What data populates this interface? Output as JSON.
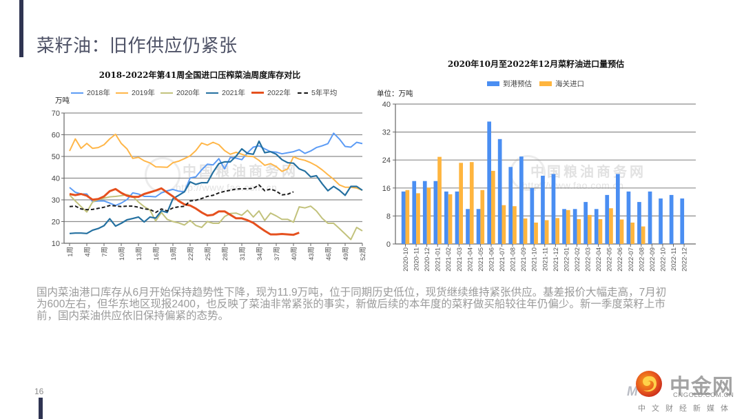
{
  "slide": {
    "title": "菜籽油：旧作供应仍紧张",
    "accent_color": "#2F3452",
    "body_lines": [
      "国内菜油港口库存从6月开始保持趋势性下降，现为11.9万吨，位于同期历史低位，现货继续维持紧张供应。基差报价大幅走高，7月初",
      "为600左右，但华东地区现报2400，也反映了菜油非常紧张的事实，新做后续的本年度的菜籽做买船较往年仍偏少。新一季度菜籽上市",
      "前，国内菜油供应依旧保持偏紧的态势。"
    ],
    "page_number": "16"
  },
  "logo": {
    "name": "中金网",
    "domain": "CNGOLD.COM.CN",
    "tagline": "中文财经新媒体",
    "overlay_fragment": "M e"
  },
  "chart_data": [
    {
      "type": "line",
      "title": "2018-2022年第41周全国进口压榨菜油周度库存对比",
      "xlabel": "",
      "ylabel": "万吨",
      "ylim": [
        10,
        70
      ],
      "yticks": [
        10,
        20,
        30,
        40,
        50,
        60,
        70
      ],
      "x_ticks": [
        1,
        4,
        7,
        10,
        13,
        16,
        19,
        22,
        25,
        28,
        31,
        34,
        37,
        40,
        43,
        46,
        49,
        52
      ],
      "x_tick_labels": [
        "1周",
        "4周",
        "7周",
        "10周",
        "13周",
        "16周",
        "19周",
        "22周",
        "25周",
        "28周",
        "31周",
        "34周",
        "37周",
        "40周",
        "43周",
        "46周",
        "49周",
        "52周"
      ],
      "x_unit": "week",
      "grid": true,
      "legend_position": "top",
      "watermark": {
        "cn": "中国粮油商务网",
        "url": "http://www.fao.com.cn"
      },
      "series": [
        {
          "name": "2018年",
          "color": "#5B9BF5",
          "line_style": "solid",
          "values": [
            35.7,
            33.5,
            32.7,
            32.7,
            29.2,
            29.5,
            29.5,
            28.5,
            27.4,
            28.5,
            30.1,
            33.2,
            32.7,
            31.6,
            31.6,
            31.4,
            33.2,
            34.2,
            34.8,
            34.0,
            33.7,
            40.1,
            40.6,
            43.8,
            46.4,
            46.1,
            49.0,
            44.3,
            49.5,
            49.2,
            48.5,
            51.7,
            54.3,
            54.9,
            53.5,
            52.2,
            52.0,
            51.2,
            51.7,
            52.2,
            53.1,
            51.4,
            52.5,
            54.1,
            54.9,
            55.9,
            60.7,
            58.0,
            54.6,
            54.3,
            56.5,
            55.9
          ]
        },
        {
          "name": "2019年",
          "color": "#FFB648",
          "line_style": "solid",
          "values": [
            52.5,
            58.1,
            53.7,
            56.0,
            53.7,
            54.1,
            55.4,
            58.1,
            60.2,
            56.0,
            53.5,
            49.1,
            49.6,
            48.0,
            47.0,
            45.2,
            45.1,
            45.0,
            47.1,
            47.8,
            49.0,
            50.3,
            52.7,
            56.2,
            55.2,
            56.5,
            55.4,
            52.7,
            51.0,
            51.9,
            51.0,
            50.1,
            49.9,
            48.2,
            45.9,
            46.7,
            45.3,
            43.1,
            44.3,
            49.8,
            48.8,
            48.2,
            47.1,
            45.7,
            43.8,
            41.6,
            39.5,
            36.9,
            35.8,
            35.8,
            35.5,
            34.4
          ]
        },
        {
          "name": "2020年",
          "color": "#C2C27C",
          "line_style": "solid",
          "values": [
            32.2,
            29.5,
            26.9,
            24.4,
            29.0,
            30.1,
            30.8,
            31.4,
            31.6,
            31.9,
            32.4,
            31.6,
            29.0,
            26.9,
            25.3,
            20.3,
            24.2,
            21.0,
            20.0,
            19.4,
            18.4,
            20.5,
            18.2,
            17.3,
            20.0,
            19.2,
            19.2,
            22.3,
            23.7,
            23.9,
            22.9,
            25.2,
            22.1,
            24.9,
            20.5,
            23.9,
            22.6,
            21.0,
            21.0,
            19.7,
            26.8,
            26.3,
            27.1,
            24.9,
            21.5,
            19.2,
            19.2,
            16.8,
            14.3,
            11.7,
            17.3,
            15.7
          ]
        },
        {
          "name": "2021年",
          "color": "#2470A0",
          "line_style": "solid",
          "values": [
            14.5,
            14.7,
            14.7,
            14.5,
            16.0,
            16.8,
            18.1,
            21.3,
            17.9,
            19.2,
            20.8,
            21.4,
            22.1,
            19.8,
            22.1,
            21.6,
            25.0,
            24.2,
            30.5,
            32.1,
            33.7,
            38.3,
            37.1,
            37.9,
            37.9,
            42.7,
            46.7,
            47.5,
            47.5,
            50.1,
            53.5,
            51.4,
            51.0,
            57.0,
            51.7,
            52.2,
            51.0,
            48.5,
            47.1,
            46.9,
            44.3,
            43.2,
            40.6,
            41.1,
            37.4,
            34.2,
            36.2,
            34.4,
            32.1,
            36.2,
            36.2,
            34.4
          ]
        },
        {
          "name": "2022年",
          "color": "#E5501E",
          "line_style": "solid",
          "values": [
            32.7,
            32.2,
            32.7,
            31.9,
            30.1,
            30.4,
            31.6,
            34.0,
            35.0,
            33.2,
            31.9,
            31.4,
            31.4,
            32.7,
            33.5,
            34.3,
            35.3,
            33.4,
            31.6,
            29.5,
            27.9,
            27.4,
            26.0,
            24.2,
            22.8,
            23.1,
            24.7,
            24.7,
            23.1,
            21.5,
            21.5,
            20.6,
            19.4,
            17.5,
            15.7,
            14.1,
            14.1,
            14.3,
            14.1,
            13.9,
            14.9
          ]
        },
        {
          "name": "5年平均",
          "color": "#1A1A1A",
          "line_style": "dashed",
          "values": [
            26.9,
            27.1,
            25.8,
            25.5,
            25.6,
            26.1,
            26.6,
            27.4,
            27.2,
            26.9,
            27.1,
            27.1,
            26.6,
            25.8,
            25.6,
            24.2,
            25.8,
            24.9,
            26.3,
            26.8,
            27.0,
            29.5,
            29.8,
            30.6,
            31.6,
            32.1,
            33.2,
            33.9,
            34.4,
            35.0,
            35.1,
            35.1,
            35.3,
            36.9,
            34.2,
            35.0,
            34.0,
            32.3,
            32.6,
            33.7
          ]
        }
      ]
    },
    {
      "type": "bar",
      "title": "2020年10月至2022年12月菜籽油进口量预估",
      "xlabel": "",
      "ylabel": "单位：万吨",
      "ylim": [
        0,
        40
      ],
      "yticks": [
        0,
        8,
        16,
        24,
        32,
        40
      ],
      "grid": true,
      "legend_position": "top",
      "watermark": {
        "cn": "中国粮油商务网",
        "url": "http://www.fao.com.cn"
      },
      "categories": [
        "2020-10",
        "2020-11",
        "2020-12",
        "2021-01",
        "2021-02",
        "2021-03",
        "2021-04",
        "2021-05",
        "2021-06",
        "2021-07",
        "2021-08",
        "2021-09",
        "2021-10",
        "2021-11",
        "2021-12",
        "2022-01",
        "2022-02",
        "2022-03",
        "2022-04",
        "2022-05",
        "2022-06",
        "2022-07",
        "2022-08",
        "2022-09",
        "2022-10",
        "2022-11",
        "2022-12"
      ],
      "series": [
        {
          "name": "到港预估",
          "color": "#4A8EF2",
          "values": [
            15,
            18,
            18,
            18,
            15,
            15,
            10,
            10,
            35,
            30,
            22,
            25,
            16,
            19.5,
            20,
            10,
            10,
            12,
            10,
            14,
            20,
            15,
            12,
            15,
            13,
            14,
            13
          ]
        },
        {
          "name": "海关进口",
          "color": "#FFB53E",
          "values": [
            15.4,
            14.5,
            16.1,
            24.9,
            14.2,
            23.2,
            23.4,
            15.4,
            20.9,
            11.1,
            10.8,
            7.3,
            6.1,
            6.8,
            7.4,
            9.7,
            7.1,
            8.3,
            7.1,
            10.2,
            7.0,
            6.1,
            5.0,
            null,
            null,
            null,
            null
          ]
        }
      ]
    }
  ]
}
